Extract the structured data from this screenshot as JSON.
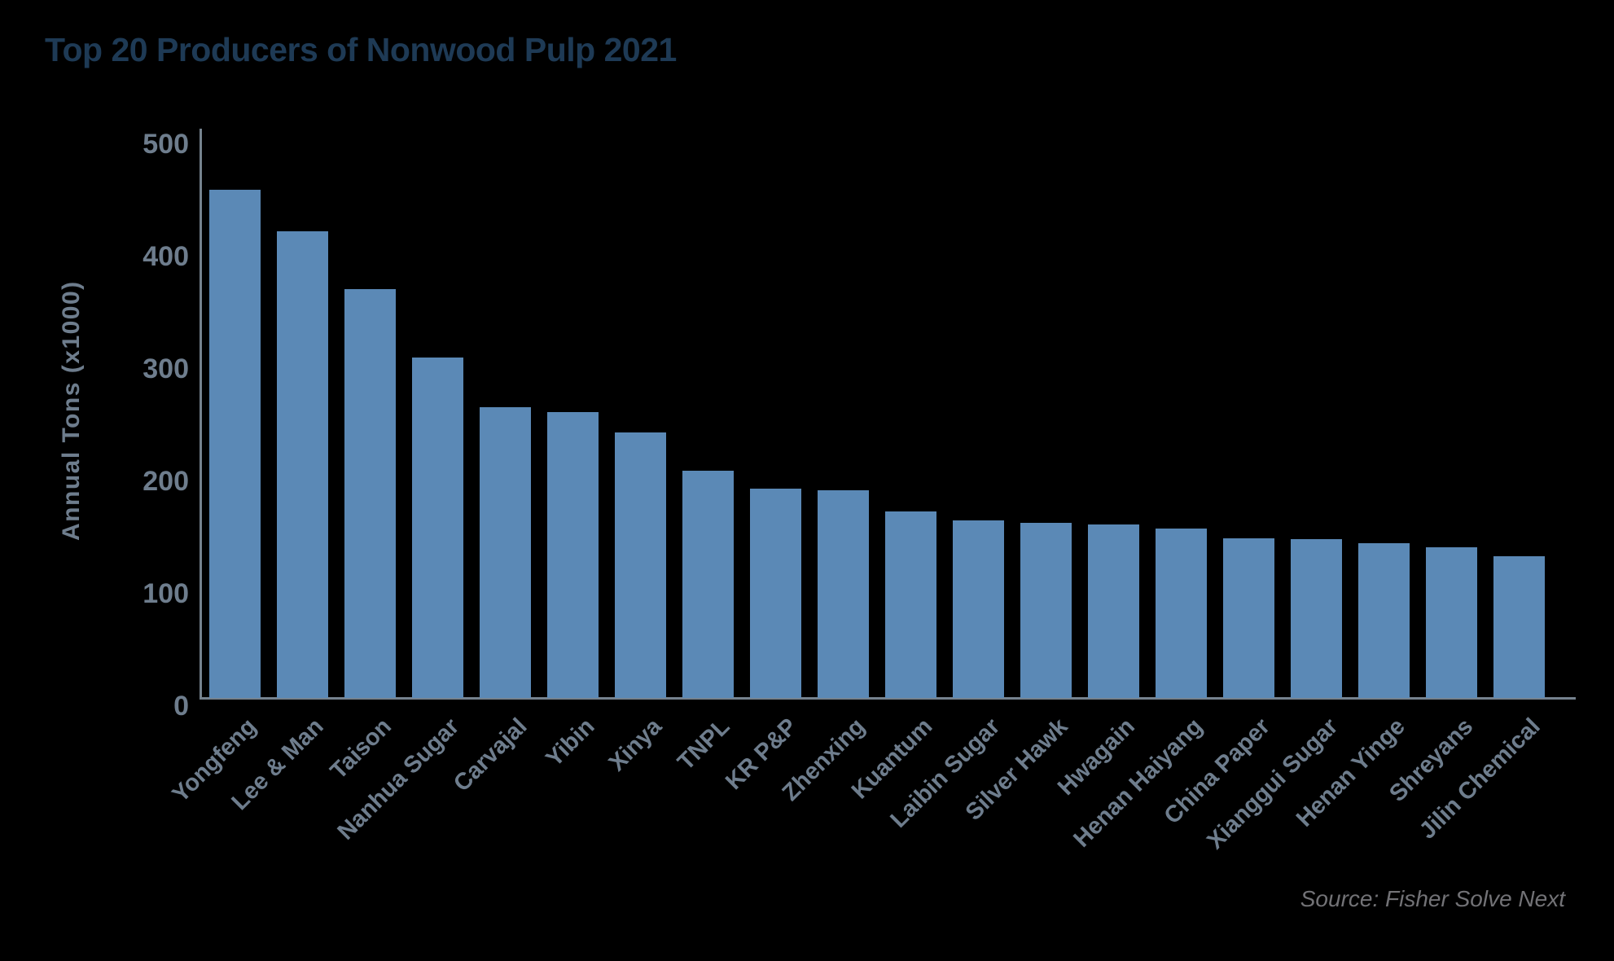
{
  "title": "Top 20 Producers of Nonwood Pulp 2021",
  "source_note": "Source: Fisher Solve Next",
  "colors": {
    "background": "#000000",
    "bar": "#5b89b6",
    "title": "#1e3a55",
    "axis_labels": "#6e7d8d",
    "axis_line": "#75828e",
    "source": "#727276"
  },
  "chart_data": {
    "type": "bar",
    "title": "Top 20 Producers of Nonwood Pulp 2021",
    "xlabel": "",
    "ylabel": "Annual Tons (x1000)",
    "ylim": [
      0,
      500
    ],
    "yticks": [
      0,
      100,
      200,
      300,
      400,
      500
    ],
    "grid": false,
    "legend": null,
    "categories": [
      "Yongfeng",
      "Lee & Man",
      "Taison",
      "Nanhua Sugar",
      "Carvajal",
      "Yibin",
      "Xinya",
      "TNPL",
      "KR P&P",
      "Zhenxing",
      "Kuantum",
      "Laibin Sugar",
      "Silver Hawk",
      "Hwagain",
      "Henan Haiyang",
      "China Paper",
      "Xianggui Sugar",
      "Henan Yinge",
      "Shreyans",
      "Jilin Chemical"
    ],
    "values": [
      452,
      415,
      364,
      303,
      259,
      254,
      236,
      202,
      186,
      185,
      166,
      158,
      156,
      154,
      151,
      142,
      141,
      138,
      134,
      126
    ]
  }
}
